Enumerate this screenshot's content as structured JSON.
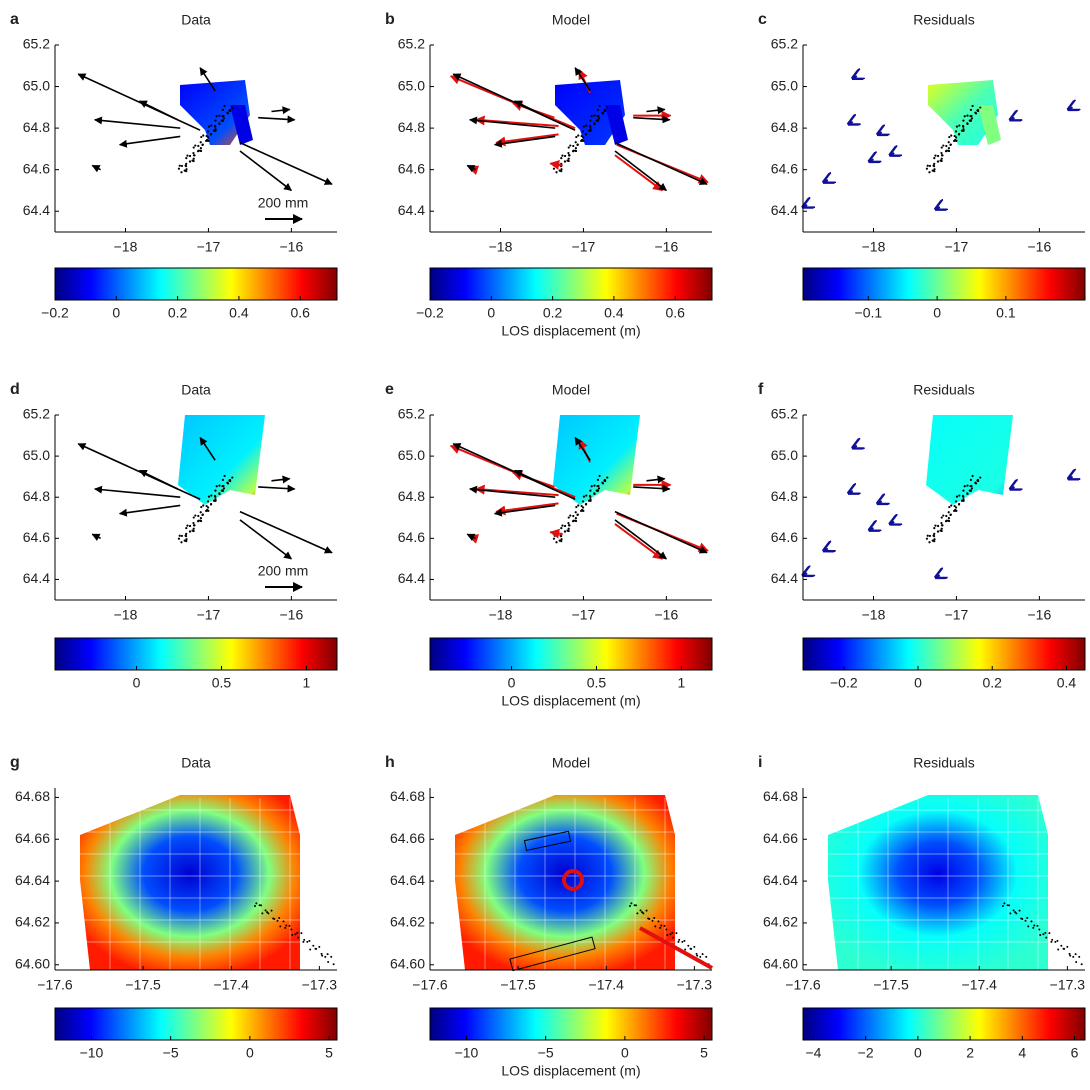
{
  "chart_data": [
    {
      "type": "map",
      "letter": "a",
      "title": "Data",
      "xlim": [
        -18.85,
        -15.45
      ],
      "ylim": [
        64.3,
        65.2
      ],
      "xticks": [
        {
          "value": -18,
          "label": "−18"
        },
        {
          "value": -17,
          "label": "−17"
        },
        {
          "value": -16,
          "label": "−16"
        }
      ],
      "yticks": [
        64.4,
        64.6,
        64.8,
        {
          "value": 65.0,
          "label": "65.0"
        },
        65.2
      ],
      "scale_label": "200 mm",
      "vectors": [
        [
          -17.1,
          64.79,
          -18.57,
          65.06
        ],
        [
          -16.62,
          64.73,
          -15.51,
          64.53
        ],
        [
          -16.62,
          64.69,
          -16.0,
          64.5
        ],
        [
          -17.34,
          64.8,
          -18.37,
          64.84
        ],
        [
          -17.37,
          64.84,
          -17.83,
          64.93
        ],
        [
          -16.4,
          64.85,
          -15.96,
          64.84
        ],
        [
          -16.92,
          64.98,
          -17.1,
          65.09
        ],
        [
          -17.34,
          64.76,
          -18.07,
          64.72
        ],
        [
          -16.24,
          64.88,
          -16.02,
          64.89
        ],
        [
          -18.3,
          64.6,
          -18.4,
          64.62
        ]
      ],
      "colorbar": {
        "lim": [
          -0.2,
          0.72
        ],
        "ticks": [
          {
            "value": -0.2,
            "label": "−0.2"
          },
          0,
          0.2,
          0.4,
          0.6
        ]
      }
    },
    {
      "type": "map",
      "letter": "b",
      "title": "Model",
      "xlim": [
        -18.85,
        -15.45
      ],
      "ylim": [
        64.3,
        65.2
      ],
      "xticks": [
        {
          "value": -18,
          "label": "−18"
        },
        {
          "value": -17,
          "label": "−17"
        },
        {
          "value": -16,
          "label": "−16"
        }
      ],
      "yticks": [
        64.4,
        64.6,
        64.8,
        {
          "value": 65.0,
          "label": "65.0"
        },
        65.2
      ],
      "vectors": [
        [
          -17.1,
          64.79,
          -18.57,
          65.06
        ],
        [
          -16.62,
          64.73,
          -15.51,
          64.53
        ],
        [
          -16.62,
          64.69,
          -16.0,
          64.5
        ],
        [
          -17.34,
          64.8,
          -18.37,
          64.84
        ],
        [
          -17.37,
          64.84,
          -17.83,
          64.93
        ],
        [
          -16.4,
          64.85,
          -15.96,
          64.84
        ],
        [
          -16.92,
          64.98,
          -17.1,
          65.09
        ],
        [
          -17.34,
          64.76,
          -18.07,
          64.72
        ],
        [
          -16.24,
          64.88,
          -16.02,
          64.89
        ],
        [
          -18.3,
          64.6,
          -18.4,
          64.62
        ]
      ],
      "model_vectors": [
        [
          -17.1,
          64.8,
          -18.6,
          65.05
        ],
        [
          -16.6,
          64.72,
          -15.5,
          64.54
        ],
        [
          -16.62,
          64.67,
          -16.05,
          64.5
        ],
        [
          -17.3,
          64.81,
          -18.3,
          64.84
        ],
        [
          -17.35,
          64.85,
          -17.85,
          64.92
        ],
        [
          -16.4,
          64.86,
          -15.95,
          64.86
        ],
        [
          -16.92,
          64.97,
          -17.05,
          65.08
        ],
        [
          -17.3,
          64.77,
          -18.05,
          64.73
        ],
        [
          -17.25,
          64.62,
          -17.4,
          64.63
        ],
        [
          -18.3,
          64.6,
          -18.38,
          64.61
        ]
      ],
      "colorbar": {
        "lim": [
          -0.2,
          0.72
        ],
        "ticks": [
          {
            "value": -0.2,
            "label": "−0.2"
          },
          0,
          0.2,
          0.4,
          0.6
        ],
        "label": "LOS displacement (m)"
      }
    },
    {
      "type": "map",
      "letter": "c",
      "title": "Residuals",
      "xlim": [
        -18.85,
        -15.45
      ],
      "ylim": [
        64.3,
        65.2
      ],
      "xticks": [
        {
          "value": -18,
          "label": "−18"
        },
        {
          "value": -17,
          "label": "−17"
        },
        {
          "value": -16,
          "label": "−16"
        }
      ],
      "yticks": [
        64.4,
        64.6,
        64.8,
        {
          "value": 65.0,
          "label": "65.0"
        },
        65.2
      ],
      "vectors": [
        [
          -18.2,
          65.05,
          -18.25,
          65.04
        ],
        [
          -18.25,
          64.83,
          -18.3,
          64.82
        ],
        [
          -17.9,
          64.78,
          -17.95,
          64.77
        ],
        [
          -18.0,
          64.65,
          -18.05,
          64.64
        ],
        [
          -18.55,
          64.55,
          -18.6,
          64.54
        ],
        [
          -17.75,
          64.68,
          -17.8,
          64.67
        ],
        [
          -17.2,
          64.42,
          -17.25,
          64.41
        ],
        [
          -16.3,
          64.85,
          -16.35,
          64.84
        ],
        [
          -15.6,
          64.9,
          -15.65,
          64.89
        ],
        [
          -18.8,
          64.43,
          -18.85,
          64.42
        ]
      ],
      "colorbar": {
        "lim": [
          -0.195,
          0.215
        ],
        "ticks": [
          {
            "value": -0.1,
            "label": "−0.1"
          },
          0,
          0.1
        ]
      }
    },
    {
      "type": "map",
      "letter": "d",
      "title": "Data",
      "xlim": [
        -18.85,
        -15.45
      ],
      "ylim": [
        64.3,
        65.2
      ],
      "xticks": [
        {
          "value": -18,
          "label": "−18"
        },
        {
          "value": -17,
          "label": "−17"
        },
        {
          "value": -16,
          "label": "−16"
        }
      ],
      "yticks": [
        64.4,
        64.6,
        64.8,
        {
          "value": 65.0,
          "label": "65.0"
        },
        65.2
      ],
      "scale_label": "200 mm",
      "vectors": [
        [
          -17.1,
          64.79,
          -18.57,
          65.06
        ],
        [
          -16.62,
          64.73,
          -15.51,
          64.53
        ],
        [
          -16.62,
          64.69,
          -16.0,
          64.5
        ],
        [
          -17.34,
          64.8,
          -18.37,
          64.84
        ],
        [
          -17.37,
          64.84,
          -17.83,
          64.93
        ],
        [
          -16.4,
          64.85,
          -15.96,
          64.84
        ],
        [
          -16.92,
          64.98,
          -17.1,
          65.09
        ],
        [
          -17.34,
          64.76,
          -18.07,
          64.72
        ],
        [
          -16.24,
          64.88,
          -16.02,
          64.89
        ],
        [
          -18.3,
          64.6,
          -18.4,
          64.62
        ]
      ],
      "colorbar": {
        "lim": [
          -0.48,
          1.18
        ],
        "ticks": [
          0,
          0.5,
          1
        ]
      }
    },
    {
      "type": "map",
      "letter": "e",
      "title": "Model",
      "xlim": [
        -18.85,
        -15.45
      ],
      "ylim": [
        64.3,
        65.2
      ],
      "xticks": [
        {
          "value": -18,
          "label": "−18"
        },
        {
          "value": -17,
          "label": "−17"
        },
        {
          "value": -16,
          "label": "−16"
        }
      ],
      "yticks": [
        64.4,
        64.6,
        64.8,
        {
          "value": 65.0,
          "label": "65.0"
        },
        65.2
      ],
      "vectors": [
        [
          -17.1,
          64.79,
          -18.57,
          65.06
        ],
        [
          -16.62,
          64.73,
          -15.51,
          64.53
        ],
        [
          -16.62,
          64.69,
          -16.0,
          64.5
        ],
        [
          -17.34,
          64.8,
          -18.37,
          64.84
        ],
        [
          -17.37,
          64.84,
          -17.83,
          64.93
        ],
        [
          -16.4,
          64.85,
          -15.96,
          64.84
        ],
        [
          -16.92,
          64.98,
          -17.1,
          65.09
        ],
        [
          -17.34,
          64.76,
          -18.07,
          64.72
        ],
        [
          -16.24,
          64.88,
          -16.02,
          64.89
        ],
        [
          -18.3,
          64.6,
          -18.4,
          64.62
        ]
      ],
      "model_vectors": [
        [
          -17.1,
          64.8,
          -18.6,
          65.05
        ],
        [
          -16.6,
          64.72,
          -15.5,
          64.54
        ],
        [
          -16.62,
          64.67,
          -16.05,
          64.5
        ],
        [
          -17.3,
          64.81,
          -18.3,
          64.84
        ],
        [
          -17.35,
          64.85,
          -17.85,
          64.92
        ],
        [
          -16.4,
          64.86,
          -15.95,
          64.86
        ],
        [
          -16.92,
          64.97,
          -17.05,
          65.08
        ],
        [
          -17.3,
          64.77,
          -18.05,
          64.73
        ],
        [
          -17.25,
          64.62,
          -17.4,
          64.63
        ],
        [
          -18.3,
          64.6,
          -18.38,
          64.61
        ]
      ],
      "colorbar": {
        "lim": [
          -0.48,
          1.18
        ],
        "ticks": [
          0,
          0.5,
          1
        ],
        "label": "LOS displacement (m)"
      }
    },
    {
      "type": "map",
      "letter": "f",
      "title": "Residuals",
      "xlim": [
        -18.85,
        -15.45
      ],
      "ylim": [
        64.3,
        65.2
      ],
      "xticks": [
        {
          "value": -18,
          "label": "−18"
        },
        {
          "value": -17,
          "label": "−17"
        },
        {
          "value": -16,
          "label": "−16"
        }
      ],
      "yticks": [
        64.4,
        64.6,
        64.8,
        {
          "value": 65.0,
          "label": "65.0"
        },
        65.2
      ],
      "vectors": [
        [
          -18.2,
          65.05,
          -18.25,
          65.04
        ],
        [
          -18.25,
          64.83,
          -18.3,
          64.82
        ],
        [
          -17.9,
          64.78,
          -17.95,
          64.77
        ],
        [
          -18.0,
          64.65,
          -18.05,
          64.64
        ],
        [
          -18.55,
          64.55,
          -18.6,
          64.54
        ],
        [
          -17.75,
          64.68,
          -17.8,
          64.67
        ],
        [
          -17.2,
          64.42,
          -17.25,
          64.41
        ],
        [
          -16.3,
          64.85,
          -16.35,
          64.84
        ],
        [
          -15.6,
          64.9,
          -15.65,
          64.89
        ],
        [
          -18.8,
          64.43,
          -18.85,
          64.42
        ]
      ],
      "colorbar": {
        "lim": [
          -0.31,
          0.45
        ],
        "ticks": [
          {
            "value": -0.2,
            "label": "−0.2"
          },
          0,
          0.2,
          0.4
        ]
      }
    },
    {
      "type": "map",
      "letter": "g",
      "title": "Data",
      "xlim": [
        -17.6,
        -17.28
      ],
      "ylim": [
        64.5975,
        64.6845
      ],
      "xticks": [
        {
          "value": -17.6,
          "label": "−17.6"
        },
        {
          "value": -17.5,
          "label": "−17.5"
        },
        {
          "value": -17.4,
          "label": "−17.4"
        },
        {
          "value": -17.3,
          "label": "−17.3"
        }
      ],
      "yticks": [
        {
          "value": 64.6,
          "label": "64.60"
        },
        64.62,
        64.64,
        64.66,
        64.68
      ],
      "colorbar": {
        "lim": [
          -12.3,
          5.5
        ],
        "ticks": [
          {
            "value": -10,
            "label": "−10"
          },
          {
            "value": -5,
            "label": "−5"
          },
          0,
          5
        ]
      }
    },
    {
      "type": "map",
      "letter": "h",
      "title": "Model",
      "xlim": [
        -17.6,
        -17.28
      ],
      "ylim": [
        64.5975,
        64.6845
      ],
      "xticks": [
        {
          "value": -17.6,
          "label": "−17.6"
        },
        {
          "value": -17.5,
          "label": "−17.5"
        },
        {
          "value": -17.4,
          "label": "−17.4"
        },
        {
          "value": -17.3,
          "label": "−17.3"
        }
      ],
      "yticks": [
        {
          "value": 64.6,
          "label": "64.60"
        },
        64.62,
        64.64,
        64.66,
        64.68
      ],
      "colorbar": {
        "lim": [
          -12.3,
          5.5
        ],
        "ticks": [
          {
            "value": -10,
            "label": "−10"
          },
          {
            "value": -5,
            "label": "−5"
          },
          0,
          5
        ],
        "label": "LOS displacement (m)"
      }
    },
    {
      "type": "map",
      "letter": "i",
      "title": "Residuals",
      "xlim": [
        -17.6,
        -17.28
      ],
      "ylim": [
        64.5975,
        64.6845
      ],
      "xticks": [
        {
          "value": -17.6,
          "label": "−17.6"
        },
        {
          "value": -17.5,
          "label": "−17.5"
        },
        {
          "value": -17.4,
          "label": "−17.4"
        },
        {
          "value": -17.3,
          "label": "−17.3"
        }
      ],
      "yticks": [
        {
          "value": 64.6,
          "label": "64.60"
        },
        64.62,
        64.64,
        64.66,
        64.68
      ],
      "colorbar": {
        "lim": [
          -4.4,
          6.4
        ],
        "ticks": [
          {
            "value": -4,
            "label": "−4"
          },
          {
            "value": -2,
            "label": "−2"
          },
          0,
          2,
          4,
          6
        ]
      }
    }
  ]
}
